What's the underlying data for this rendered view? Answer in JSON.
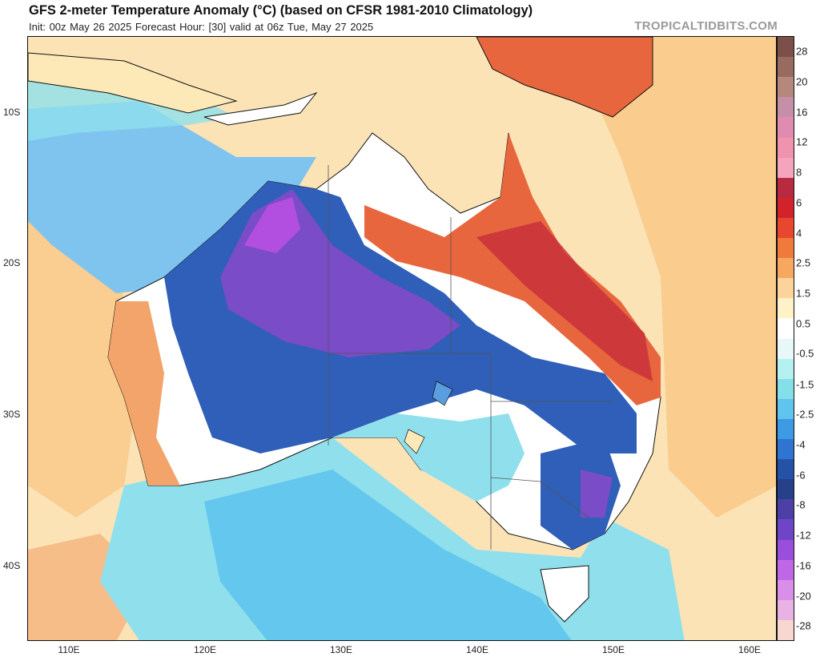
{
  "title": "GFS 2-meter Temperature Anomaly (°C) (based on CFSR 1981-2010 Climatology)",
  "subtitle": "Init: 00z May 26 2025   Forecast Hour: [30]   valid at 06z Tue, May 27 2025",
  "source": "TROPICALTIDBITS.COM",
  "map": {
    "lat_labels": [
      "10S",
      "20S",
      "30S",
      "40S"
    ],
    "lon_labels": [
      "110E",
      "120E",
      "130E",
      "140E",
      "150E",
      "160E"
    ],
    "anomaly_colors": {
      "extreme_cold": "#b34fe0",
      "very_cold": "#7a4cc8",
      "cold": "#2f5fb8",
      "cool": "#5a9ee0",
      "cool_light": "#7ec4ee",
      "slightly_cool": "#8fe0ec",
      "neutral": "#ffffff",
      "slightly_warm": "#fde9b8",
      "warm": "#f9c98a",
      "warmer": "#f3a46a",
      "hot": "#e8663e",
      "very_hot": "#c8303a",
      "ocean_base": "#fbe3b6"
    }
  },
  "colorbar": {
    "labels": [
      "28",
      "20",
      "16",
      "12",
      "8",
      "6",
      "4",
      "2.5",
      "1.5",
      "0.5",
      "-0.5",
      "-1.5",
      "-2.5",
      "-4",
      "-6",
      "-8",
      "-12",
      "-16",
      "-20",
      "-28"
    ],
    "colors": [
      "#7b5048",
      "#996a60",
      "#b6877d",
      "#c58fa8",
      "#e08cb0",
      "#f093ae",
      "#f4a4bd",
      "#b82a3f",
      "#d3232a",
      "#e8462e",
      "#f07a3c",
      "#f6a760",
      "#fcd39a",
      "#fff2c6",
      "#ffffff",
      "#e8f8f8",
      "#b5f1f1",
      "#84dfe9",
      "#5fc4ee",
      "#3e9ae4",
      "#2f74d0",
      "#2452a6",
      "#26408a",
      "#4c3fa6",
      "#6e45c6",
      "#9a4fdc",
      "#c067e8",
      "#d98fe8",
      "#e8b3e4",
      "#f7d7d0"
    ]
  }
}
